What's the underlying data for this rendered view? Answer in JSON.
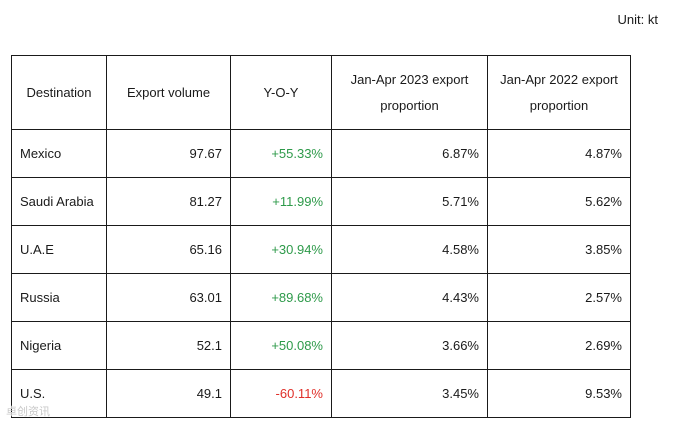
{
  "unit_label": "Unit: kt",
  "table": {
    "headers": [
      "Destination",
      "Export volume",
      "Y-O-Y",
      "Jan-Apr 2023 export proportion",
      "Jan-Apr 2022 export proportion"
    ],
    "rows": [
      {
        "destination": "Mexico",
        "volume": "97.67",
        "yoy": "+55.33%",
        "yoy_sign": "pos",
        "p2023": "6.87%",
        "p2022": "4.87%"
      },
      {
        "destination": "Saudi Arabia",
        "volume": "81.27",
        "yoy": "+11.99%",
        "yoy_sign": "pos",
        "p2023": "5.71%",
        "p2022": "5.62%"
      },
      {
        "destination": "U.A.E",
        "volume": "65.16",
        "yoy": "+30.94%",
        "yoy_sign": "pos",
        "p2023": "4.58%",
        "p2022": "3.85%"
      },
      {
        "destination": "Russia",
        "volume": "63.01",
        "yoy": "+89.68%",
        "yoy_sign": "pos",
        "p2023": "4.43%",
        "p2022": "2.57%"
      },
      {
        "destination": "Nigeria",
        "volume": "52.1",
        "yoy": "+50.08%",
        "yoy_sign": "pos",
        "p2023": "3.66%",
        "p2022": "2.69%"
      },
      {
        "destination": "U.S.",
        "volume": "49.1",
        "yoy": "-60.11%",
        "yoy_sign": "neg",
        "p2023": "3.45%",
        "p2022": "9.53%"
      }
    ]
  },
  "colors": {
    "positive": "#2e9a4a",
    "negative": "#e0302a"
  },
  "watermark": "卓创资讯"
}
